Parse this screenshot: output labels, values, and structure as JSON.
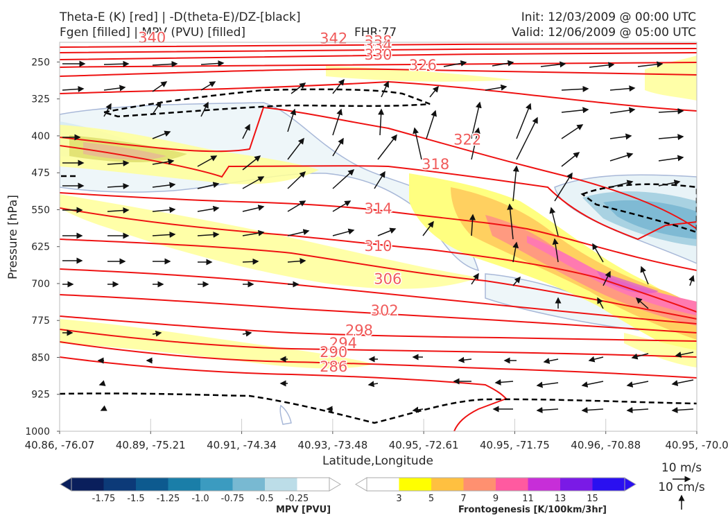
{
  "header": {
    "title_line1": "Theta-E (K) [red] | -D(theta-E)/DZ-[black]",
    "title_line2": "Fgen [filled] | MPV (PVU) [filled]",
    "fhr": "FHR:77",
    "init": "Init: 12/03/2009 @ 00:00 UTC",
    "valid": "Valid: 12/06/2009 @ 05:00 UTC"
  },
  "chart_data": {
    "type": "cross-section",
    "xlabel": "Latitude,Longitude",
    "ylabel": "Pressure [hPa]",
    "x_ticks": [
      "40.86, -76.07",
      "40.89, -75.21",
      "40.91, -74.34",
      "40.93, -73.48",
      "40.95, -72.61",
      "40.95, -71.75",
      "40.96, -70.88",
      "40.95, -70.0"
    ],
    "y_ticks": [
      250,
      325,
      400,
      475,
      550,
      625,
      700,
      775,
      850,
      925,
      1000
    ],
    "ylim": [
      1000,
      210
    ],
    "theta_e_contour_labels": [
      {
        "value": "340",
        "x": 0.145,
        "p": 211
      },
      {
        "value": "342",
        "x": 0.43,
        "p": 212
      },
      {
        "value": "338",
        "x": 0.5,
        "p": 218
      },
      {
        "value": "334",
        "x": 0.5,
        "p": 226
      },
      {
        "value": "330",
        "x": 0.5,
        "p": 245
      },
      {
        "value": "326",
        "x": 0.57,
        "p": 266
      },
      {
        "value": "322",
        "x": 0.64,
        "p": 418
      },
      {
        "value": "318",
        "x": 0.59,
        "p": 468
      },
      {
        "value": "314",
        "x": 0.5,
        "p": 558
      },
      {
        "value": "310",
        "x": 0.5,
        "p": 634
      },
      {
        "value": "306",
        "x": 0.515,
        "p": 701
      },
      {
        "value": "302",
        "x": 0.51,
        "p": 765
      },
      {
        "value": "298",
        "x": 0.47,
        "p": 805
      },
      {
        "value": "294",
        "x": 0.445,
        "p": 831
      },
      {
        "value": "290",
        "x": 0.43,
        "p": 849
      },
      {
        "value": "286",
        "x": 0.43,
        "p": 879
      }
    ],
    "vector_reference": {
      "horizontal": "10 m/s",
      "vertical": "10 cm/s"
    },
    "colorbars": [
      {
        "label": "MPV [PVU]",
        "ticks": [
          "-1.75",
          "-1.5",
          "-1.25",
          "-1.0",
          "-0.75",
          "-0.5",
          "-0.25"
        ],
        "colors": [
          "#0a1f5c",
          "#0c3a78",
          "#0d5a8f",
          "#1a7ea8",
          "#3b9bc0",
          "#78b9d2",
          "#bcdde8",
          "#ffffff"
        ]
      },
      {
        "label": "Frontogenesis [K/100km/3hr]",
        "ticks": [
          "3",
          "5",
          "7",
          "9",
          "11",
          "13",
          "15"
        ],
        "colors": [
          "#ffffff",
          "#ffff00",
          "#ffc040",
          "#ff9070",
          "#ff5aa0",
          "#c72ed8",
          "#7a1ae6",
          "#2a10f0"
        ]
      }
    ]
  }
}
